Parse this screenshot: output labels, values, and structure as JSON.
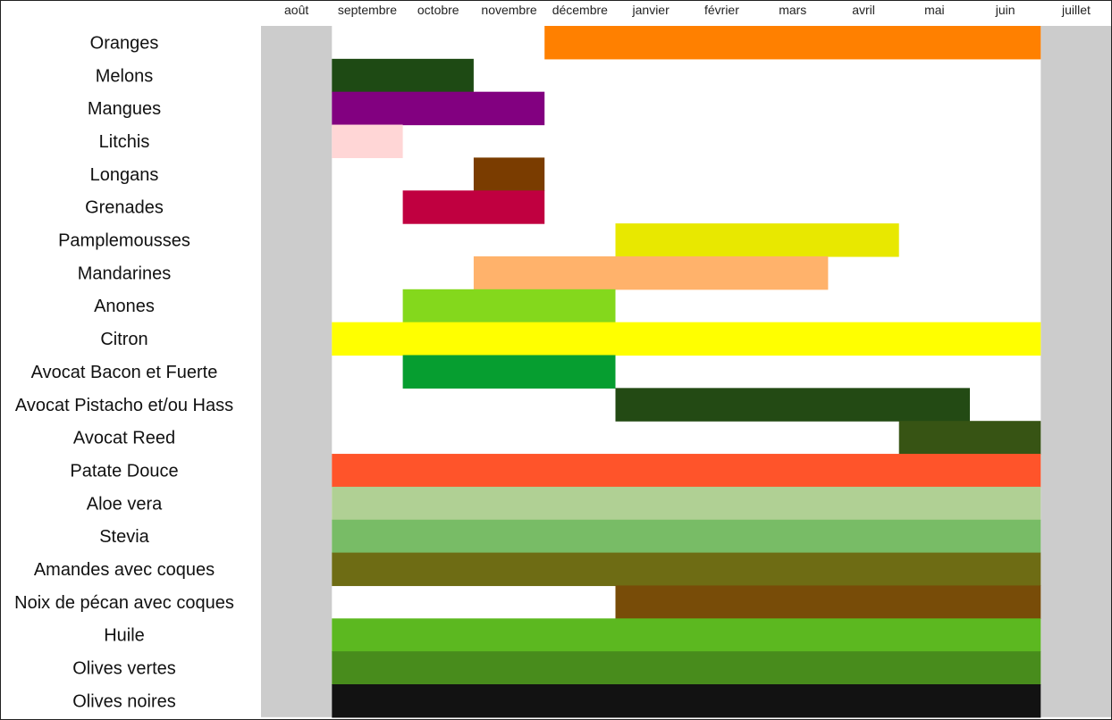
{
  "chart_data": {
    "type": "bar",
    "title": "",
    "xlabel": "",
    "ylabel": "",
    "months": [
      "août",
      "septembre",
      "octobre",
      "novembre",
      "décembre",
      "janvier",
      "février",
      "mars",
      "avril",
      "mai",
      "juin",
      "juillet"
    ],
    "off_season_months": [
      "août",
      "juillet"
    ],
    "off_season_color": "#cccccc",
    "grid": false,
    "legend": "none",
    "series": [
      {
        "name": "Oranges",
        "start": "décembre",
        "end": "juin",
        "color": "#ff8000"
      },
      {
        "name": "Melons",
        "start": "septembre",
        "end": "octobre",
        "color": "#1e4a14"
      },
      {
        "name": "Mangues",
        "start": "septembre",
        "end": "novembre",
        "color": "#820080"
      },
      {
        "name": "Litchis",
        "start": "septembre",
        "end": "septembre",
        "color": "#ffd6d6"
      },
      {
        "name": "Longans",
        "start": "novembre",
        "end": "novembre",
        "color": "#7a3c00"
      },
      {
        "name": "Grenades",
        "start": "octobre",
        "end": "novembre",
        "color": "#c00040"
      },
      {
        "name": "Pamplemousses",
        "start": "janvier",
        "end": "avril",
        "color": "#e8e800"
      },
      {
        "name": "Mandarines",
        "start": "novembre",
        "end": "mars",
        "color": "#ffb26b"
      },
      {
        "name": "Anones",
        "start": "octobre",
        "end": "décembre",
        "color": "#84d81c"
      },
      {
        "name": "Citron",
        "start": "septembre",
        "end": "juin",
        "color": "#ffff00"
      },
      {
        "name": "Avocat Bacon et Fuerte",
        "start": "octobre",
        "end": "décembre",
        "color": "#069e30"
      },
      {
        "name": "Avocat Pistacho et/ou Hass",
        "start": "janvier",
        "end": "mai",
        "color": "#234a14"
      },
      {
        "name": "Avocat Reed",
        "start": "mai",
        "end": "juin",
        "color": "#375414"
      },
      {
        "name": "Patate Douce",
        "start": "septembre",
        "end": "juin",
        "color": "#ff542a"
      },
      {
        "name": "Aloe vera",
        "start": "septembre",
        "end": "juin",
        "color": "#b0d094"
      },
      {
        "name": "Stevia",
        "start": "septembre",
        "end": "juin",
        "color": "#78bc66"
      },
      {
        "name": "Amandes avec coques",
        "start": "septembre",
        "end": "juin",
        "color": "#6e6c14"
      },
      {
        "name": "Noix de pécan avec coques",
        "start": "janvier",
        "end": "juin",
        "color": "#784c08"
      },
      {
        "name": "Huile",
        "start": "septembre",
        "end": "juin",
        "color": "#5cb820"
      },
      {
        "name": "Olives vertes",
        "start": "septembre",
        "end": "juin",
        "color": "#488c1c"
      },
      {
        "name": "Olives noires",
        "start": "septembre",
        "end": "juin",
        "color": "#121212"
      }
    ]
  }
}
